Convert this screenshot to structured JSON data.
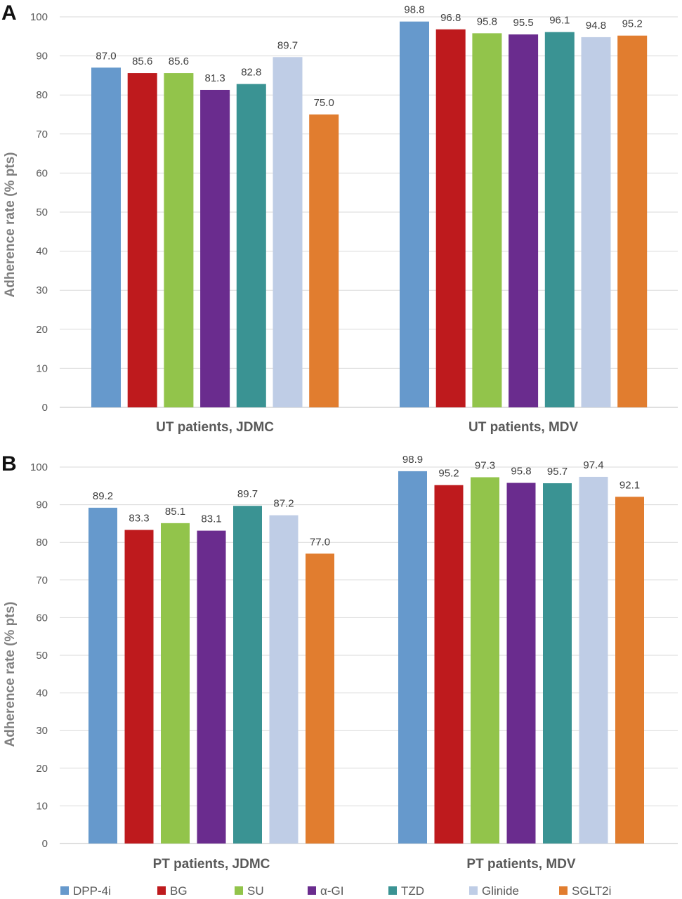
{
  "legend": [
    {
      "name": "DPP-4i",
      "color": "#6699CC"
    },
    {
      "name": "BG",
      "color": "#BE1A1D"
    },
    {
      "name": "SU",
      "color": "#92C44B"
    },
    {
      "name": "α-GI",
      "color": "#6A2C8E"
    },
    {
      "name": "TZD",
      "color": "#3A9393"
    },
    {
      "name": "Glinide",
      "color": "#BFCDE6"
    },
    {
      "name": "SGLT2i",
      "color": "#E17D2F"
    }
  ],
  "chart_data": [
    {
      "panel": "A",
      "type": "bar",
      "ylabel": "Adherence rate (% pts)",
      "ylim": [
        0,
        100
      ],
      "yticks": [
        0,
        10,
        20,
        30,
        40,
        50,
        60,
        70,
        80,
        90,
        100
      ],
      "categories": [
        "UT patients, JDMC",
        "UT patients, MDV"
      ],
      "series": [
        {
          "name": "DPP-4i",
          "values": [
            87.0,
            98.8
          ]
        },
        {
          "name": "BG",
          "values": [
            85.6,
            96.8
          ]
        },
        {
          "name": "SU",
          "values": [
            85.6,
            95.8
          ]
        },
        {
          "name": "α-GI",
          "values": [
            81.3,
            95.5
          ]
        },
        {
          "name": "TZD",
          "values": [
            82.8,
            96.1
          ]
        },
        {
          "name": "Glinide",
          "values": [
            89.7,
            94.8
          ]
        },
        {
          "name": "SGLT2i",
          "values": [
            75.0,
            95.2
          ]
        }
      ],
      "grid": true
    },
    {
      "panel": "B",
      "type": "bar",
      "ylabel": "Adherence rate (% pts)",
      "ylim": [
        0,
        100
      ],
      "yticks": [
        0,
        10,
        20,
        30,
        40,
        50,
        60,
        70,
        80,
        90,
        100
      ],
      "categories": [
        "PT patients, JDMC",
        "PT patients, MDV"
      ],
      "series": [
        {
          "name": "DPP-4i",
          "values": [
            89.2,
            98.9
          ]
        },
        {
          "name": "BG",
          "values": [
            83.3,
            95.2
          ]
        },
        {
          "name": "SU",
          "values": [
            85.1,
            97.3
          ]
        },
        {
          "name": "α-GI",
          "values": [
            83.1,
            95.8
          ]
        },
        {
          "name": "TZD",
          "values": [
            89.7,
            95.7
          ]
        },
        {
          "name": "Glinide",
          "values": [
            87.2,
            97.4
          ]
        },
        {
          "name": "SGLT2i",
          "values": [
            77.0,
            92.1
          ]
        }
      ],
      "grid": true
    }
  ]
}
